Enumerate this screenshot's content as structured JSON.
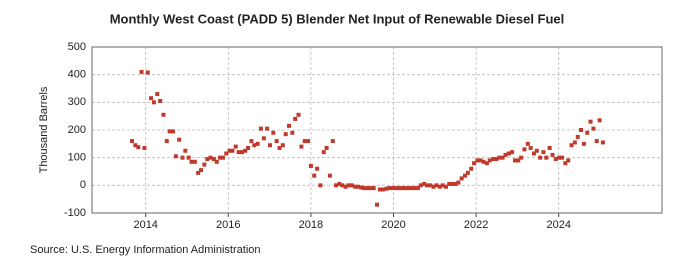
{
  "chart_data": {
    "type": "scatter",
    "title": "Monthly West Coast (PADD 5) Blender Net Input of Renewable Diesel Fuel",
    "y_label": "Thousand Barrels",
    "source": "Source: U.S. Energy Information Administration",
    "color": "#c0392b",
    "grid": true,
    "xlim": [
      2012.7,
      2026.5
    ],
    "xticks": [
      2014,
      2016,
      2018,
      2020,
      2022,
      2024
    ],
    "ylim": [
      -100,
      500
    ],
    "yticks": [
      -100,
      0,
      100,
      200,
      300,
      400,
      500
    ],
    "x": [
      2013.67,
      2013.75,
      2013.82,
      2013.9,
      2013.97,
      2014.05,
      2014.13,
      2014.2,
      2014.28,
      2014.35,
      2014.43,
      2014.51,
      2014.58,
      2014.66,
      2014.73,
      2014.81,
      2014.89,
      2014.96,
      2015.04,
      2015.11,
      2015.19,
      2015.27,
      2015.34,
      2015.42,
      2015.49,
      2015.57,
      2015.65,
      2015.72,
      2015.8,
      2015.87,
      2015.95,
      2016.03,
      2016.1,
      2016.18,
      2016.25,
      2016.33,
      2016.41,
      2016.48,
      2016.56,
      2016.63,
      2016.71,
      2016.79,
      2016.86,
      2016.94,
      2017.01,
      2017.09,
      2017.17,
      2017.24,
      2017.32,
      2017.39,
      2017.47,
      2017.55,
      2017.62,
      2017.7,
      2017.77,
      2017.85,
      2017.93,
      2018.0,
      2018.08,
      2018.15,
      2018.23,
      2018.31,
      2018.38,
      2018.46,
      2018.53,
      2018.61,
      2018.69,
      2018.76,
      2018.84,
      2018.91,
      2018.99,
      2019.07,
      2019.14,
      2019.22,
      2019.29,
      2019.37,
      2019.45,
      2019.52,
      2019.6,
      2019.67,
      2019.75,
      2019.83,
      2019.9,
      2019.98,
      2020.05,
      2020.13,
      2020.21,
      2020.28,
      2020.36,
      2020.43,
      2020.51,
      2020.59,
      2020.66,
      2020.74,
      2020.81,
      2020.89,
      2020.97,
      2021.04,
      2021.12,
      2021.19,
      2021.27,
      2021.35,
      2021.42,
      2021.5,
      2021.57,
      2021.65,
      2021.73,
      2021.8,
      2021.88,
      2021.95,
      2022.03,
      2022.11,
      2022.18,
      2022.26,
      2022.33,
      2022.41,
      2022.49,
      2022.56,
      2022.64,
      2022.71,
      2022.79,
      2022.87,
      2022.94,
      2023.02,
      2023.09,
      2023.17,
      2023.25,
      2023.32,
      2023.4,
      2023.47,
      2023.55,
      2023.63,
      2023.7,
      2023.78,
      2023.85,
      2023.93,
      2024.01,
      2024.08,
      2024.16,
      2024.23,
      2024.31,
      2024.39,
      2024.46,
      2024.54,
      2024.61,
      2024.69,
      2024.77,
      2024.84,
      2024.92,
      2024.99,
      2025.07
    ],
    "values": [
      160,
      145,
      138,
      410,
      135,
      408,
      315,
      300,
      330,
      305,
      255,
      160,
      195,
      195,
      105,
      165,
      100,
      125,
      100,
      85,
      85,
      45,
      55,
      75,
      95,
      100,
      95,
      85,
      100,
      100,
      115,
      125,
      125,
      140,
      120,
      120,
      125,
      135,
      160,
      145,
      150,
      205,
      170,
      205,
      145,
      190,
      160,
      135,
      145,
      185,
      215,
      190,
      240,
      255,
      140,
      160,
      160,
      70,
      35,
      60,
      0,
      120,
      135,
      35,
      160,
      0,
      5,
      0,
      -5,
      0,
      0,
      -5,
      -5,
      -8,
      -10,
      -10,
      -10,
      -10,
      -70,
      -15,
      -15,
      -12,
      -10,
      -10,
      -10,
      -10,
      -10,
      -10,
      -10,
      -10,
      -10,
      -10,
      0,
      5,
      0,
      0,
      -5,
      0,
      -5,
      0,
      -5,
      5,
      5,
      5,
      10,
      25,
      35,
      45,
      60,
      80,
      90,
      90,
      85,
      80,
      90,
      95,
      95,
      100,
      100,
      110,
      115,
      120,
      90,
      90,
      100,
      130,
      150,
      135,
      115,
      125,
      100,
      120,
      100,
      135,
      110,
      95,
      100,
      100,
      80,
      90,
      145,
      155,
      175,
      200,
      150,
      190,
      230,
      205,
      160,
      235,
      155
    ]
  }
}
